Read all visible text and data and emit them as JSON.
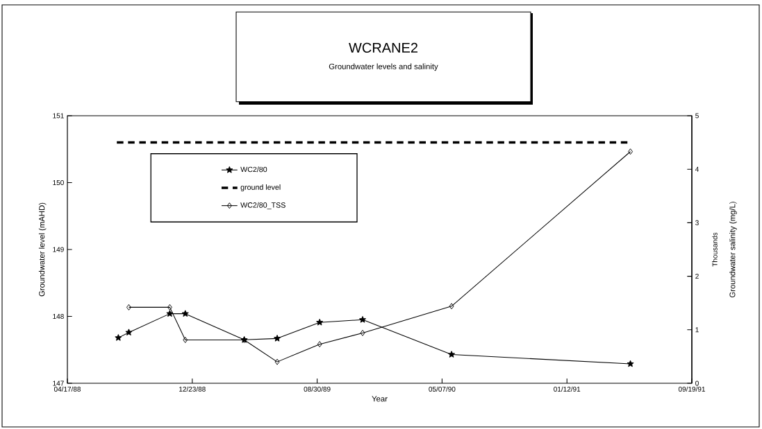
{
  "chart_data": {
    "type": "line",
    "title": "WCRANE2",
    "subtitle": "Groundwater levels and salinity",
    "xlabel": "Year",
    "ylabel": "Groundwater level (mAHD)",
    "y2label": "Groundwater salinity (mg/L)",
    "annotations": [
      "Thousands"
    ],
    "xlim": [
      "1988-04-17",
      "1991-09-19"
    ],
    "xticks": [
      {
        "value": "1988-04-17",
        "label": "04/17/88"
      },
      {
        "value": "1988-12-23",
        "label": "12/23/88"
      },
      {
        "value": "1989-08-30",
        "label": "08/30/89"
      },
      {
        "value": "1990-05-07",
        "label": "05/07/90"
      },
      {
        "value": "1991-01-12",
        "label": "01/12/91"
      },
      {
        "value": "1991-09-19",
        "label": "09/19/91"
      }
    ],
    "ylim": [
      147,
      151
    ],
    "yticks": [
      147,
      148,
      149,
      150,
      151
    ],
    "y2lim": [
      0,
      5
    ],
    "y2ticks": [
      0,
      1,
      2,
      3,
      4,
      5
    ],
    "legend": "top left",
    "grid": false,
    "series": [
      {
        "name": "WC2/80",
        "color": "#000000",
        "marker": "star",
        "line_style": "solid",
        "x": [
          "1988-07-28",
          "1988-08-18",
          "1988-11-08",
          "1988-12-09",
          "1989-04-06",
          "1989-06-11",
          "1989-09-04",
          "1989-11-29",
          "1990-05-26",
          "1991-05-19"
        ],
        "values": [
          147.68,
          147.76,
          148.04,
          148.04,
          147.65,
          147.67,
          147.91,
          147.95,
          147.43,
          147.29
        ]
      },
      {
        "name": "ground level",
        "color": "#000000",
        "marker": "none",
        "line_style": "dashed",
        "x": [
          "1988-07-25",
          "1991-05-13"
        ],
        "values": [
          150.6,
          150.6
        ]
      },
      {
        "name": "WC2/80_TSS",
        "axis": "y2",
        "color": "#000000",
        "marker": "diamond",
        "line_style": "solid",
        "x": [
          "1988-08-18",
          "1988-11-08",
          "1988-12-09",
          "1989-04-06",
          "1989-06-11",
          "1989-09-04",
          "1989-11-29",
          "1990-05-26",
          "1991-05-19"
        ],
        "values": [
          1.42,
          1.42,
          0.81,
          0.81,
          0.4,
          0.73,
          0.94,
          1.44,
          4.33
        ]
      }
    ]
  }
}
